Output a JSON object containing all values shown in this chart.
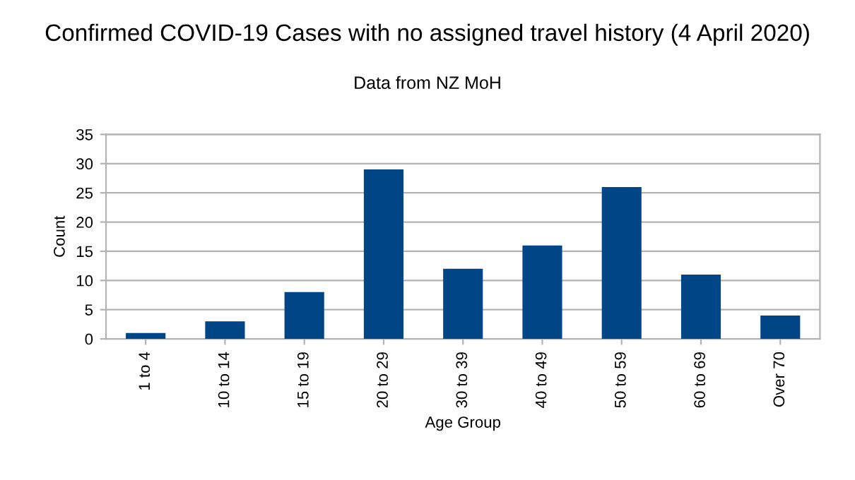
{
  "chart_data": {
    "type": "bar",
    "title": "Confirmed COVID-19 Cases with no assigned travel history (4 April 2020)",
    "subtitle": "Data from NZ MoH",
    "xlabel": "Age Group",
    "ylabel": "Count",
    "categories": [
      "1 to 4",
      "10 to 14",
      "15 to 19",
      "20 to 29",
      "30 to 39",
      "40 to 49",
      "50 to 59",
      "60 to 69",
      "Over 70"
    ],
    "values": [
      1,
      3,
      8,
      29,
      12,
      16,
      26,
      11,
      4
    ],
    "color": "#004586",
    "ylim": [
      0,
      35
    ],
    "yticks": [
      0,
      5,
      10,
      15,
      20,
      25,
      30,
      35
    ],
    "grid": "y"
  }
}
